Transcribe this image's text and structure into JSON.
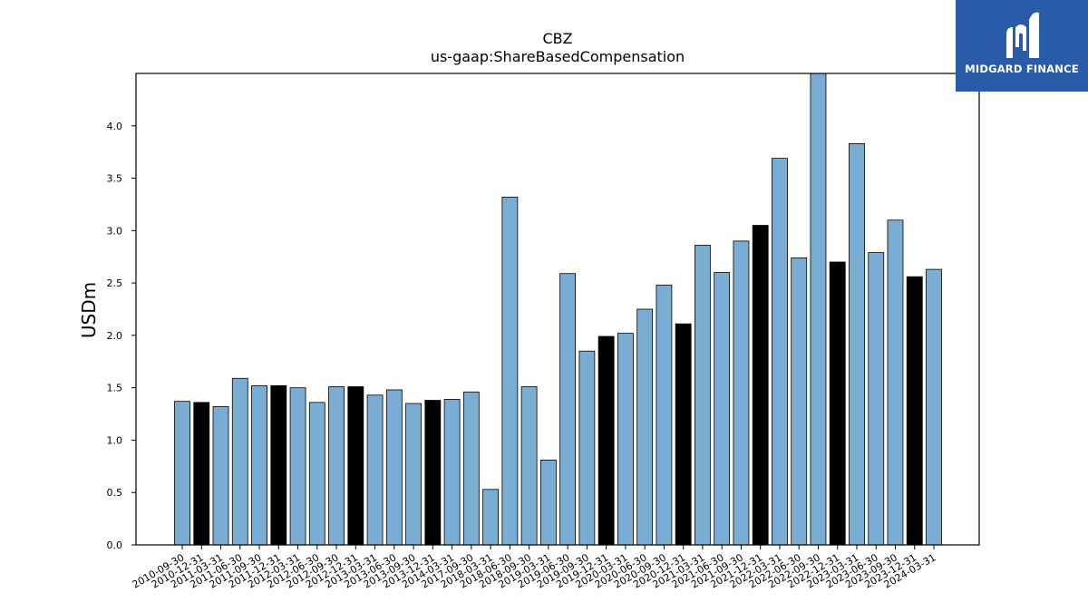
{
  "chart_data": {
    "type": "bar",
    "title": "CBZ",
    "subtitle": "us-gaap:ShareBasedCompensation",
    "ylabel": "USDm",
    "xlabel": "",
    "ylim": [
      0,
      4.5
    ],
    "yticks": [
      "0.0",
      "0.5",
      "1.0",
      "1.5",
      "2.0",
      "2.5",
      "3.0",
      "3.5",
      "4.0"
    ],
    "grid": false,
    "bar_color": "#7aadd4",
    "highlight_color": "#000000",
    "categories": [
      "2010-09-30",
      "2010-12-31",
      "2011-03-31",
      "2011-06-30",
      "2011-09-30",
      "2011-12-31",
      "2012-03-31",
      "2012-06-30",
      "2012-09-30",
      "2012-12-31",
      "2013-03-31",
      "2013-06-30",
      "2013-09-30",
      "2013-12-31",
      "2014-03-31",
      "2017-09-30",
      "2018-03-31",
      "2018-06-30",
      "2018-09-30",
      "2019-03-31",
      "2019-06-30",
      "2019-09-30",
      "2019-12-31",
      "2020-03-31",
      "2020-06-30",
      "2020-09-30",
      "2020-12-31",
      "2021-03-31",
      "2021-06-30",
      "2021-09-30",
      "2021-12-31",
      "2022-03-31",
      "2022-06-30",
      "2022-09-30",
      "2022-12-31",
      "2023-03-31",
      "2023-06-30",
      "2023-09-30",
      "2023-12-31",
      "2024-03-31"
    ],
    "values": [
      1.37,
      1.36,
      1.32,
      1.59,
      1.52,
      1.52,
      1.5,
      1.36,
      1.51,
      1.51,
      1.43,
      1.48,
      1.35,
      1.38,
      1.39,
      1.46,
      0.53,
      3.32,
      1.51,
      0.81,
      2.59,
      1.85,
      1.99,
      2.02,
      2.25,
      2.48,
      2.11,
      2.86,
      2.6,
      2.9,
      3.05,
      3.69,
      2.74,
      4.5,
      2.7,
      3.83,
      2.79,
      3.1,
      2.56,
      2.63
    ],
    "highlighted": [
      1,
      5,
      9,
      13,
      22,
      26,
      30,
      34,
      38
    ]
  },
  "logo": {
    "text": "MIDGARD FINANCE",
    "background": "#2a5ba8"
  }
}
